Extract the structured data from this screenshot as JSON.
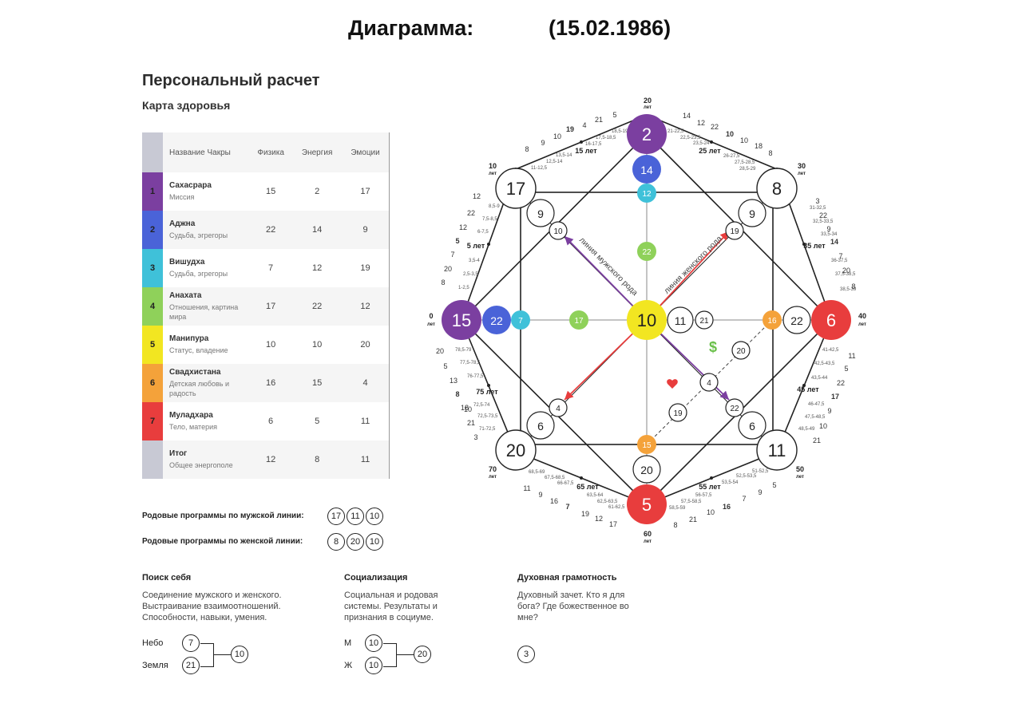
{
  "title": {
    "label": "Диаграмма:",
    "date": "(15.02.1986)"
  },
  "heading": "Персональный расчет",
  "subheading": "Карта здоровья",
  "table": {
    "headers": [
      "Название Чакры",
      "Физика",
      "Энергия",
      "Эмоции"
    ],
    "rows": [
      {
        "n": "1",
        "name": "Сахасрара",
        "sub": "Миссия",
        "f": "15",
        "e": "2",
        "m": "17",
        "color": "#7b3fa0"
      },
      {
        "n": "2",
        "name": "Аджна",
        "sub": "Судьба, эгрегоры",
        "f": "22",
        "e": "14",
        "m": "9",
        "color": "#4a63d8"
      },
      {
        "n": "3",
        "name": "Вишудха",
        "sub": "Судьба, эгрегоры",
        "f": "7",
        "e": "12",
        "m": "19",
        "color": "#3fc1d9"
      },
      {
        "n": "4",
        "name": "Анахата",
        "sub": "Отношения, картина мира",
        "f": "17",
        "e": "22",
        "m": "12",
        "color": "#8fd15a"
      },
      {
        "n": "5",
        "name": "Манипура",
        "sub": "Статус, владение",
        "f": "10",
        "e": "10",
        "m": "20",
        "color": "#f2e621"
      },
      {
        "n": "6",
        "name": "Свадхистана",
        "sub": "Детская любовь и радость",
        "f": "16",
        "e": "15",
        "m": "4",
        "color": "#f4a23a"
      },
      {
        "n": "7",
        "name": "Муладхара",
        "sub": "Тело, материя",
        "f": "6",
        "e": "5",
        "m": "11",
        "color": "#e83d3d"
      },
      {
        "n": "",
        "name": "Итог",
        "sub": "Общее энергополе",
        "f": "12",
        "e": "8",
        "m": "11",
        "color": "#c8c9d4"
      }
    ]
  },
  "programs": {
    "male_label": "Родовые программы по мужской линии:",
    "male": [
      "17",
      "11",
      "10"
    ],
    "female_label": "Родовые программы по женской линии:",
    "female": [
      "8",
      "20",
      "10"
    ]
  },
  "sections": {
    "self": {
      "title": "Поиск себя",
      "text": "Соединение мужского и женского. Выстраивание взаимоотношений. Способности, навыки, умения.",
      "sky_label": "Небо",
      "sky": "7",
      "earth_label": "Земля",
      "earth": "21",
      "result": "10"
    },
    "social": {
      "title": "Социализация",
      "text": "Социальная и родовая системы. Результаты и признания в социуме.",
      "m_label": "М",
      "m": "10",
      "w_label": "Ж",
      "w": "10",
      "result": "20"
    },
    "spirit": {
      "title": "Духовная грамотность",
      "text": "Духовный зачет. Кто я для бога? Где божественное во мне?",
      "result": "3"
    }
  },
  "diagram": {
    "colors": {
      "purple": "#7b3fa0",
      "blue": "#4a63d8",
      "cyan": "#3fc1d9",
      "green": "#8fd15a",
      "yellow": "#f2e621",
      "orange": "#f4a23a",
      "red": "#e83d3d"
    },
    "top_main": "2",
    "top_inner": "14",
    "top_inner2": "12",
    "top_green": "22",
    "left_main": "15",
    "left_inner": "22",
    "left_inner2": "7",
    "left_green": "17",
    "right_main": "6",
    "right_inner": "22",
    "right_inner2": "16",
    "bottom_main": "5",
    "bottom_inner": "20",
    "bottom_inner2": "15",
    "center": "10",
    "center_right1": "11",
    "center_right2": "21",
    "tl_big": "17",
    "tl_med": "9",
    "tl_small": "10",
    "tr_big": "8",
    "tr_med": "9",
    "tr_small": "19",
    "bl_big": "20",
    "bl_med": "6",
    "bl_small": "4",
    "br_big": "11",
    "br_med": "6",
    "br_small": "22",
    "money_circle": "20",
    "heart_circle": "19",
    "mid_circle": "4",
    "male_line_label": "линия мужского рода",
    "female_line_label": "линия женского рода",
    "dollar": "$",
    "ages": {
      "a0": "0",
      "a5": "5 лет",
      "a10": "10",
      "a15": "15 лет",
      "a20": "20",
      "a25": "25 лет",
      "a30": "30",
      "a35": "35 лет",
      "a40": "40",
      "a45": "45 лет",
      "a50": "50",
      "a55": "55 лет",
      "a60": "60",
      "a65": "65 лет",
      "a70": "70",
      "a75": "75 лет",
      "years": "лет"
    },
    "outer_numbers": {
      "top_left": [
        "8",
        "9",
        "10",
        "19",
        "4",
        "21",
        "5"
      ],
      "top_right": [
        "14",
        "12",
        "22",
        "10",
        "10",
        "18",
        "8"
      ],
      "right_top": [
        "3",
        "22",
        "9",
        "14",
        "7",
        "20",
        "8"
      ],
      "right_bottom": [
        "11",
        "5",
        "22",
        "17",
        "9",
        "10",
        "21"
      ],
      "bottom_right": [
        "8",
        "21",
        "10",
        "16",
        "7",
        "9",
        "5"
      ],
      "bottom_left": [
        "17",
        "12",
        "19",
        "7",
        "16",
        "9",
        "11"
      ],
      "left_bottom": [
        "3",
        "21",
        "10",
        "18",
        "8",
        "13",
        "5",
        "20"
      ],
      "left_top": [
        "8",
        "20",
        "7",
        "5",
        "12",
        "22",
        "12"
      ]
    },
    "small_ranges": {
      "tl": [
        "11-12,5",
        "12,5-14",
        "13,5-14",
        "16-17,5",
        "17,5-18,5",
        "18,5-19"
      ],
      "tr": [
        "21-22,5",
        "22,5-23,5",
        "23,5-24",
        "26-27,5",
        "27,5-28,5",
        "28,5-29"
      ],
      "rt": [
        "31-32,5",
        "32,5-33,5",
        "33,5-34",
        "36-37,5",
        "37,5-38,5",
        "38,5-39"
      ],
      "rb": [
        "41-42,5",
        "42,5-43,5",
        "43,5-44",
        "46-47,5",
        "47,5-48,5",
        "48,5-49"
      ],
      "br": [
        "51-52,5",
        "52,5-53,5",
        "53,5-54",
        "56-57,5",
        "57,5-58,5",
        "58,5-59"
      ],
      "bl": [
        "61-62,5",
        "62,5-63,5",
        "63,5-64",
        "66-67,5",
        "67,5-68,5",
        "68,5-69"
      ],
      "lb": [
        "71-72,5",
        "72,5-73,5",
        "72,5-74",
        "76-77,5",
        "77,5-78,5",
        "78,5-79"
      ],
      "lt": [
        "1-2,5",
        "2,5-3,5",
        "3,5-4",
        "6-7,5",
        "7,5-8,5",
        "8,5-9"
      ]
    }
  }
}
